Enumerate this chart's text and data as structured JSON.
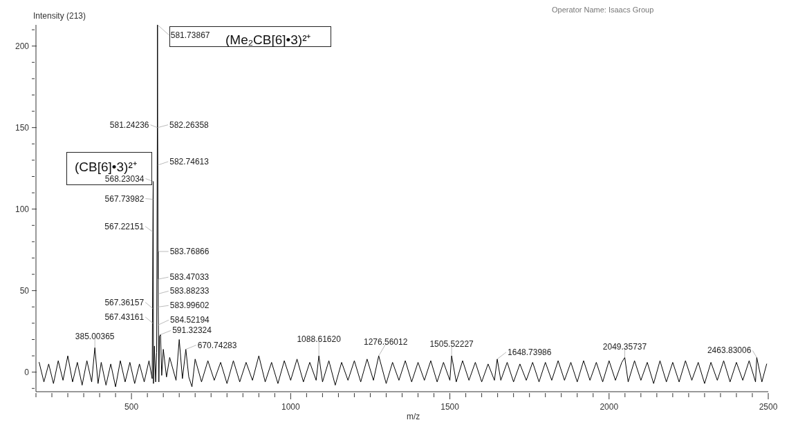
{
  "chart_data": {
    "type": "line",
    "ylabel": "Intensity (213)",
    "xlabel": "m/z",
    "annotations": [
      "(Me₂CB[6]•3)²⁺",
      "(CB[6]•3)²⁺",
      "Operator Name: Isaacs Group",
      {
        "text": "581.73867",
        "x": 581.73867,
        "y": 213
      },
      {
        "text": "581.24236",
        "x": 581.24236,
        "y": 150
      },
      {
        "text": "582.26358",
        "x": 582.26358,
        "y": 150
      },
      {
        "text": "582.74613",
        "x": 582.74613,
        "y": 127
      },
      {
        "text": "568.23034",
        "x": 568.23034,
        "y": 117
      },
      {
        "text": "567.73982",
        "x": 567.73982,
        "y": 106
      },
      {
        "text": "567.22151",
        "x": 567.22151,
        "y": 86
      },
      {
        "text": "583.76866",
        "x": 583.76866,
        "y": 74
      },
      {
        "text": "583.47033",
        "x": 583.47033,
        "y": 57
      },
      {
        "text": "583.88233",
        "x": 583.88233,
        "y": 48
      },
      {
        "text": "583.99602",
        "x": 583.99602,
        "y": 40
      },
      {
        "text": "567.36157",
        "x": 567.36157,
        "y": 39
      },
      {
        "text": "567.43161",
        "x": 567.43161,
        "y": 30
      },
      {
        "text": "584.52194",
        "x": 584.52194,
        "y": 29
      },
      {
        "text": "591.32324",
        "x": 591.32324,
        "y": 23
      },
      {
        "text": "670.74283",
        "x": 670.74283,
        "y": 14
      },
      {
        "text": "385.00365",
        "x": 385.00365,
        "y": 15
      },
      {
        "text": "1088.61620",
        "x": 1088.6162,
        "y": 10
      },
      {
        "text": "1276.56012",
        "x": 1276.56012,
        "y": 10
      },
      {
        "text": "1505.52227",
        "x": 1505.52227,
        "y": 10
      },
      {
        "text": "1648.73986",
        "x": 1648.73986,
        "y": 8
      },
      {
        "text": "2049.35737",
        "x": 2049.35737,
        "y": 9
      },
      {
        "text": "2463.83006",
        "x": 2463.83006,
        "y": 9
      }
    ],
    "x": [
      210,
      225,
      240,
      255,
      270,
      285,
      300,
      315,
      330,
      345,
      360,
      375,
      385,
      395,
      405,
      420,
      435,
      450,
      465,
      480,
      495,
      510,
      525,
      540,
      555,
      565,
      567.22151,
      567.73982,
      568.23034,
      569,
      572,
      576,
      579,
      581.24236,
      581.73867,
      582.26358,
      582.74613,
      583.47033,
      583.76866,
      584.0,
      584.52194,
      586,
      588,
      591.32324,
      595,
      600,
      610,
      620,
      640,
      650,
      660,
      670.74283,
      680,
      690,
      700,
      720,
      740,
      760,
      780,
      800,
      820,
      840,
      860,
      880,
      900,
      920,
      940,
      960,
      980,
      1000,
      1020,
      1040,
      1060,
      1080,
      1088.6162,
      1100,
      1120,
      1140,
      1160,
      1180,
      1200,
      1220,
      1240,
      1260,
      1276.56012,
      1300,
      1320,
      1340,
      1360,
      1380,
      1400,
      1420,
      1440,
      1460,
      1480,
      1500,
      1505.52227,
      1520,
      1540,
      1560,
      1580,
      1600,
      1620,
      1640,
      1648.73986,
      1660,
      1680,
      1700,
      1720,
      1740,
      1760,
      1780,
      1800,
      1820,
      1840,
      1860,
      1880,
      1900,
      1920,
      1940,
      1960,
      1980,
      2000,
      2020,
      2040,
      2049.35737,
      2060,
      2080,
      2100,
      2120,
      2140,
      2160,
      2180,
      2200,
      2220,
      2240,
      2260,
      2280,
      2300,
      2320,
      2340,
      2360,
      2380,
      2400,
      2420,
      2440,
      2460,
      2463.83006,
      2480,
      2495
    ],
    "series": [
      {
        "color": "#000000",
        "values": [
          6,
          -6,
          5,
          -7,
          7,
          -5,
          10,
          -6,
          6,
          -8,
          7,
          -6,
          15,
          -7,
          6,
          -8,
          5,
          -9,
          7,
          -6,
          6,
          -7,
          5,
          -6,
          7,
          -4,
          86,
          106,
          117,
          -7,
          16,
          -6,
          12,
          150,
          213,
          150,
          127,
          57,
          74,
          40,
          29,
          -6,
          22,
          23,
          -2,
          14,
          -3,
          9,
          -5,
          20,
          -4,
          14,
          -3,
          -9,
          8,
          -6,
          7,
          -5,
          6,
          -7,
          7,
          -6,
          6,
          -5,
          10,
          -6,
          6,
          -7,
          7,
          -5,
          8,
          -6,
          6,
          -5,
          10,
          -6,
          7,
          -8,
          6,
          -5,
          7,
          -6,
          8,
          -5,
          10,
          -7,
          6,
          -5,
          7,
          -6,
          6,
          -5,
          7,
          -6,
          6,
          -5,
          10,
          -6,
          7,
          -5,
          6,
          -6,
          5,
          -5,
          8,
          -5,
          6,
          -6,
          5,
          -5,
          6,
          -6,
          6,
          -5,
          7,
          -5,
          6,
          -6,
          7,
          -5,
          6,
          -6,
          7,
          -5,
          6,
          9,
          -6,
          7,
          -5,
          6,
          -7,
          7,
          -6,
          6,
          -6,
          7,
          -5,
          6,
          -7,
          6,
          -5,
          7,
          -6,
          6,
          -5,
          7,
          -6,
          9,
          -6,
          5
        ]
      }
    ],
    "xlim": [
      200,
      2500
    ],
    "xticks": [
      {
        "value": 200,
        "label": null
      },
      {
        "value": 250,
        "label": null
      },
      {
        "value": 300,
        "label": null
      },
      {
        "value": 350,
        "label": null
      },
      {
        "value": 400,
        "label": null
      },
      {
        "value": 450,
        "label": null
      },
      500,
      {
        "value": 550,
        "label": null
      },
      {
        "value": 600,
        "label": null
      },
      {
        "value": 650,
        "label": null
      },
      {
        "value": 700,
        "label": null
      },
      {
        "value": 750,
        "label": null
      },
      {
        "value": 800,
        "label": null
      },
      {
        "value": 850,
        "label": null
      },
      {
        "value": 900,
        "label": null
      },
      {
        "value": 950,
        "label": null
      },
      1000,
      {
        "value": 1050,
        "label": null
      },
      {
        "value": 1100,
        "label": null
      },
      {
        "value": 1150,
        "label": null
      },
      {
        "value": 1200,
        "label": null
      },
      {
        "value": 1250,
        "label": null
      },
      {
        "value": 1300,
        "label": null
      },
      {
        "value": 1350,
        "label": null
      },
      {
        "value": 1400,
        "label": null
      },
      {
        "value": 1450,
        "label": null
      },
      1500,
      {
        "value": 1550,
        "label": null
      },
      {
        "value": 1600,
        "label": null
      },
      {
        "value": 1650,
        "label": null
      },
      {
        "value": 1700,
        "label": null
      },
      {
        "value": 1750,
        "label": null
      },
      {
        "value": 1800,
        "label": null
      },
      {
        "value": 1850,
        "label": null
      },
      {
        "value": 1900,
        "label": null
      },
      {
        "value": 1950,
        "label": null
      },
      2000,
      {
        "value": 2050,
        "label": null
      },
      {
        "value": 2100,
        "label": null
      },
      {
        "value": 2150,
        "label": null
      },
      {
        "value": 2200,
        "label": null
      },
      {
        "value": 2250,
        "label": null
      },
      {
        "value": 2300,
        "label": null
      },
      {
        "value": 2350,
        "label": null
      },
      {
        "value": 2400,
        "label": null
      },
      {
        "value": 2450,
        "label": null
      },
      2500
    ],
    "ylim": [
      -12,
      213
    ],
    "yticks": [
      {
        "value": -10,
        "label": null
      },
      0,
      {
        "value": 10,
        "label": null
      },
      {
        "value": 20,
        "label": null
      },
      {
        "value": 30,
        "label": null
      },
      {
        "value": 40,
        "label": null
      },
      50,
      {
        "value": 60,
        "label": null
      },
      {
        "value": 70,
        "label": null
      },
      {
        "value": 80,
        "label": null
      },
      {
        "value": 90,
        "label": null
      },
      100,
      {
        "value": 110,
        "label": null
      },
      {
        "value": 120,
        "label": null
      },
      {
        "value": 130,
        "label": null
      },
      {
        "value": 140,
        "label": null
      },
      150,
      {
        "value": 160,
        "label": null
      },
      {
        "value": 170,
        "label": null
      },
      {
        "value": 180,
        "label": null
      },
      {
        "value": 190,
        "label": null
      },
      200,
      {
        "value": 210,
        "label": null
      }
    ],
    "marker": "none",
    "line_style": "solid"
  }
}
